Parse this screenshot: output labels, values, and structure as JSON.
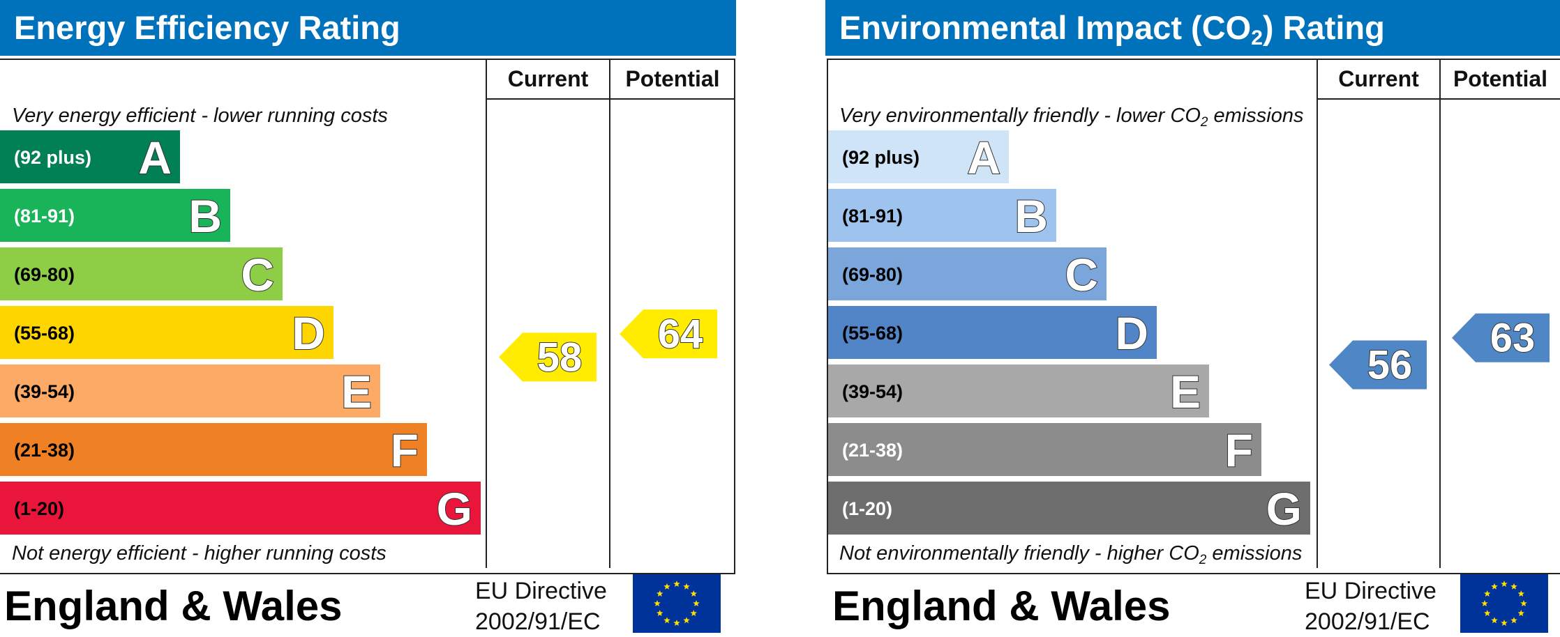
{
  "chart_data": [
    {
      "type": "bar",
      "title": "Energy Efficiency Rating",
      "top_caption": "Very energy efficient - lower running costs",
      "bottom_caption": "Not energy efficient - higher running costs",
      "column_labels": [
        "Current",
        "Potential"
      ],
      "bands": [
        {
          "letter": "A",
          "range": "(92 plus)",
          "color": "#008054",
          "text_color": "#ffffff"
        },
        {
          "letter": "B",
          "range": "(81-91)",
          "color": "#19b459",
          "text_color": "#ffffff"
        },
        {
          "letter": "C",
          "range": "(69-80)",
          "color": "#8dce46",
          "text_color": "#000000"
        },
        {
          "letter": "D",
          "range": "(55-68)",
          "color": "#ffd500",
          "text_color": "#000000"
        },
        {
          "letter": "E",
          "range": "(39-54)",
          "color": "#fcaa65",
          "text_color": "#000000"
        },
        {
          "letter": "F",
          "range": "(21-38)",
          "color": "#ef8023",
          "text_color": "#000000"
        },
        {
          "letter": "G",
          "range": "(1-20)",
          "color": "#e9153b",
          "text_color": "#000000"
        }
      ],
      "current": {
        "value": 58,
        "band": "D",
        "color": "#ffec00"
      },
      "potential": {
        "value": 64,
        "band": "D",
        "color": "#ffec00"
      },
      "footer": "England & Wales",
      "directive": [
        "EU Directive",
        "2002/91/EC"
      ]
    },
    {
      "type": "bar",
      "title": "Environmental Impact (CO",
      "title_sub": "2",
      "title_end": ") Rating",
      "top_caption": "Very environmentally friendly - lower CO",
      "top_caption_sub": "2",
      "top_caption_end": " emissions",
      "bottom_caption": "Not environmentally friendly - higher CO",
      "bottom_caption_sub": "2",
      "bottom_caption_end": " emissions",
      "column_labels": [
        "Current",
        "Potential"
      ],
      "bands": [
        {
          "letter": "A",
          "range": "(92 plus)",
          "color": "#cfe4f6",
          "text_color": "#000000"
        },
        {
          "letter": "B",
          "range": "(81-91)",
          "color": "#9dc3ee",
          "text_color": "#000000"
        },
        {
          "letter": "C",
          "range": "(69-80)",
          "color": "#7aa6dc",
          "text_color": "#000000"
        },
        {
          "letter": "D",
          "range": "(55-68)",
          "color": "#5285c7",
          "text_color": "#000000"
        },
        {
          "letter": "E",
          "range": "(39-54)",
          "color": "#a8a8a8",
          "text_color": "#000000"
        },
        {
          "letter": "F",
          "range": "(21-38)",
          "color": "#8c8c8c",
          "text_color": "#ffffff"
        },
        {
          "letter": "G",
          "range": "(1-20)",
          "color": "#6e6e6e",
          "text_color": "#ffffff"
        }
      ],
      "current": {
        "value": 56,
        "band": "D",
        "color": "#4f86c6"
      },
      "potential": {
        "value": 63,
        "band": "D",
        "color": "#4f86c6"
      },
      "footer": "England & Wales",
      "directive": [
        "EU Directive",
        "2002/91/EC"
      ]
    }
  ]
}
